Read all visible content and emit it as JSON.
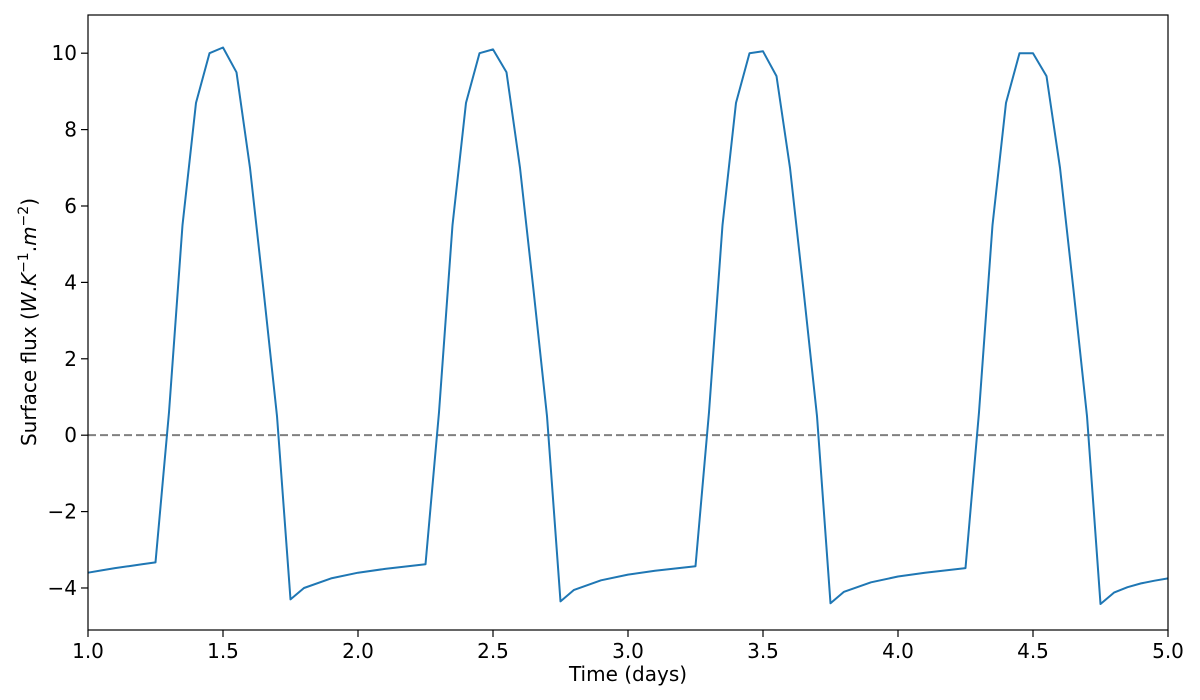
{
  "chart_data": {
    "type": "line",
    "title": "",
    "xlabel": "Time (days)",
    "ylabel_parts": {
      "prefix": "Surface flux (",
      "W": "W",
      "dot1": ".",
      "K": "K",
      "K_exp": "−1",
      "dot2": ".",
      "m": "m",
      "m_exp": "−2",
      "suffix": ")"
    },
    "xlim": [
      1.0,
      5.0
    ],
    "ylim": [
      -5.1,
      11.0
    ],
    "xticks": [
      1.0,
      1.5,
      2.0,
      2.5,
      3.0,
      3.5,
      4.0,
      4.5,
      5.0
    ],
    "xtick_labels": [
      "1.0",
      "1.5",
      "2.0",
      "2.5",
      "3.0",
      "3.5",
      "4.0",
      "4.5",
      "5.0"
    ],
    "yticks": [
      -4,
      -2,
      0,
      2,
      4,
      6,
      8,
      10
    ],
    "ytick_labels": [
      "−4",
      "−2",
      "0",
      "2",
      "4",
      "6",
      "8",
      "10"
    ],
    "grid": false,
    "reference_line": {
      "y": 0,
      "style": "dashed",
      "color": "#808080"
    },
    "series": [
      {
        "color": "#1f77b4",
        "x": [
          1.0,
          1.05,
          1.1,
          1.15,
          1.2,
          1.25,
          1.3,
          1.35,
          1.4,
          1.45,
          1.5,
          1.55,
          1.6,
          1.65,
          1.7,
          1.75,
          1.8,
          1.9,
          2.0,
          2.1,
          2.25,
          2.3,
          2.35,
          2.4,
          2.45,
          2.5,
          2.55,
          2.6,
          2.65,
          2.7,
          2.75,
          2.8,
          2.9,
          3.0,
          3.1,
          3.25,
          3.3,
          3.35,
          3.4,
          3.45,
          3.5,
          3.55,
          3.6,
          3.65,
          3.7,
          3.75,
          3.8,
          3.9,
          4.0,
          4.1,
          4.25,
          4.3,
          4.35,
          4.4,
          4.45,
          4.5,
          4.55,
          4.6,
          4.65,
          4.7,
          4.75,
          4.8,
          4.85,
          4.9,
          4.95,
          5.0
        ],
        "y": [
          -3.6,
          -3.54,
          -3.48,
          -3.43,
          -3.38,
          -3.33,
          0.6,
          5.5,
          8.7,
          10.0,
          10.15,
          9.5,
          7.0,
          3.8,
          0.5,
          -4.3,
          -4.0,
          -3.75,
          -3.6,
          -3.5,
          -3.38,
          0.6,
          5.5,
          8.7,
          10.0,
          10.1,
          9.5,
          7.0,
          3.8,
          0.5,
          -4.35,
          -4.05,
          -3.8,
          -3.65,
          -3.55,
          -3.43,
          0.6,
          5.5,
          8.7,
          10.0,
          10.05,
          9.4,
          7.0,
          3.8,
          0.5,
          -4.4,
          -4.1,
          -3.85,
          -3.7,
          -3.6,
          -3.48,
          0.6,
          5.5,
          8.7,
          10.0,
          10.0,
          9.4,
          7.0,
          3.8,
          0.5,
          -4.42,
          -4.12,
          -3.98,
          -3.88,
          -3.81,
          -3.75
        ]
      }
    ]
  }
}
